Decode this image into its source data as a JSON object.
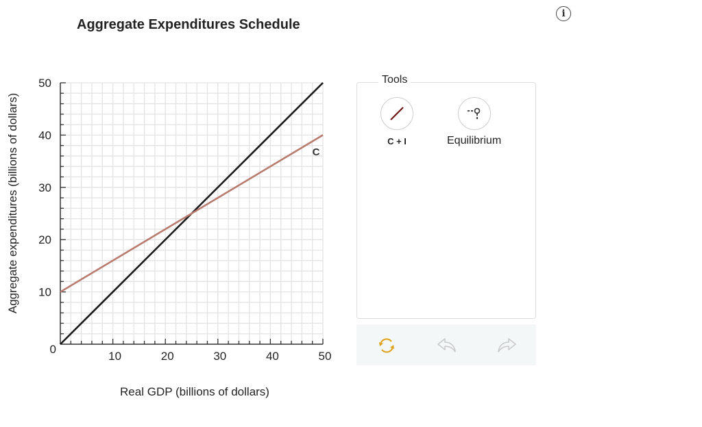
{
  "header": {
    "title": "Aggregate Expenditures Schedule",
    "info_icon": "info-icon"
  },
  "tools": {
    "legend": "Tools",
    "items": [
      {
        "label": "C + I",
        "icon": "line-tool-icon",
        "color": "#6b1616"
      },
      {
        "label": "Equilibrium",
        "icon": "equilibrium-point-icon"
      }
    ]
  },
  "actions": {
    "reset_icon": "reset-icon",
    "undo_icon": "undo-icon",
    "redo_icon": "redo-icon",
    "reset_color": "#e0a21a",
    "disabled_color": "#c8c8c8"
  },
  "chart_data": {
    "type": "line",
    "title": "Aggregate Expenditures Schedule",
    "xlabel": "Real GDP (billions of dollars)",
    "ylabel": "Aggregate expenditures (billions of dollars)",
    "xlim": [
      0,
      50
    ],
    "ylim": [
      0,
      50
    ],
    "x_ticks": [
      0,
      10,
      20,
      30,
      40,
      50
    ],
    "y_ticks": [
      0,
      10,
      20,
      30,
      40,
      50
    ],
    "x_tick_labels": [
      "10",
      "20",
      "30",
      "40",
      "50"
    ],
    "y_tick_labels": [
      "0",
      "10",
      "20",
      "30",
      "40",
      "50"
    ],
    "grid": true,
    "grid_step": 2,
    "series": [
      {
        "name": "45-degree line",
        "color": "#1a1a1a",
        "x": [
          0,
          50
        ],
        "y": [
          0,
          50
        ]
      },
      {
        "name": "C",
        "label": "C",
        "color": "#b87b6e",
        "x": [
          0,
          50
        ],
        "y": [
          10,
          40
        ]
      }
    ]
  }
}
